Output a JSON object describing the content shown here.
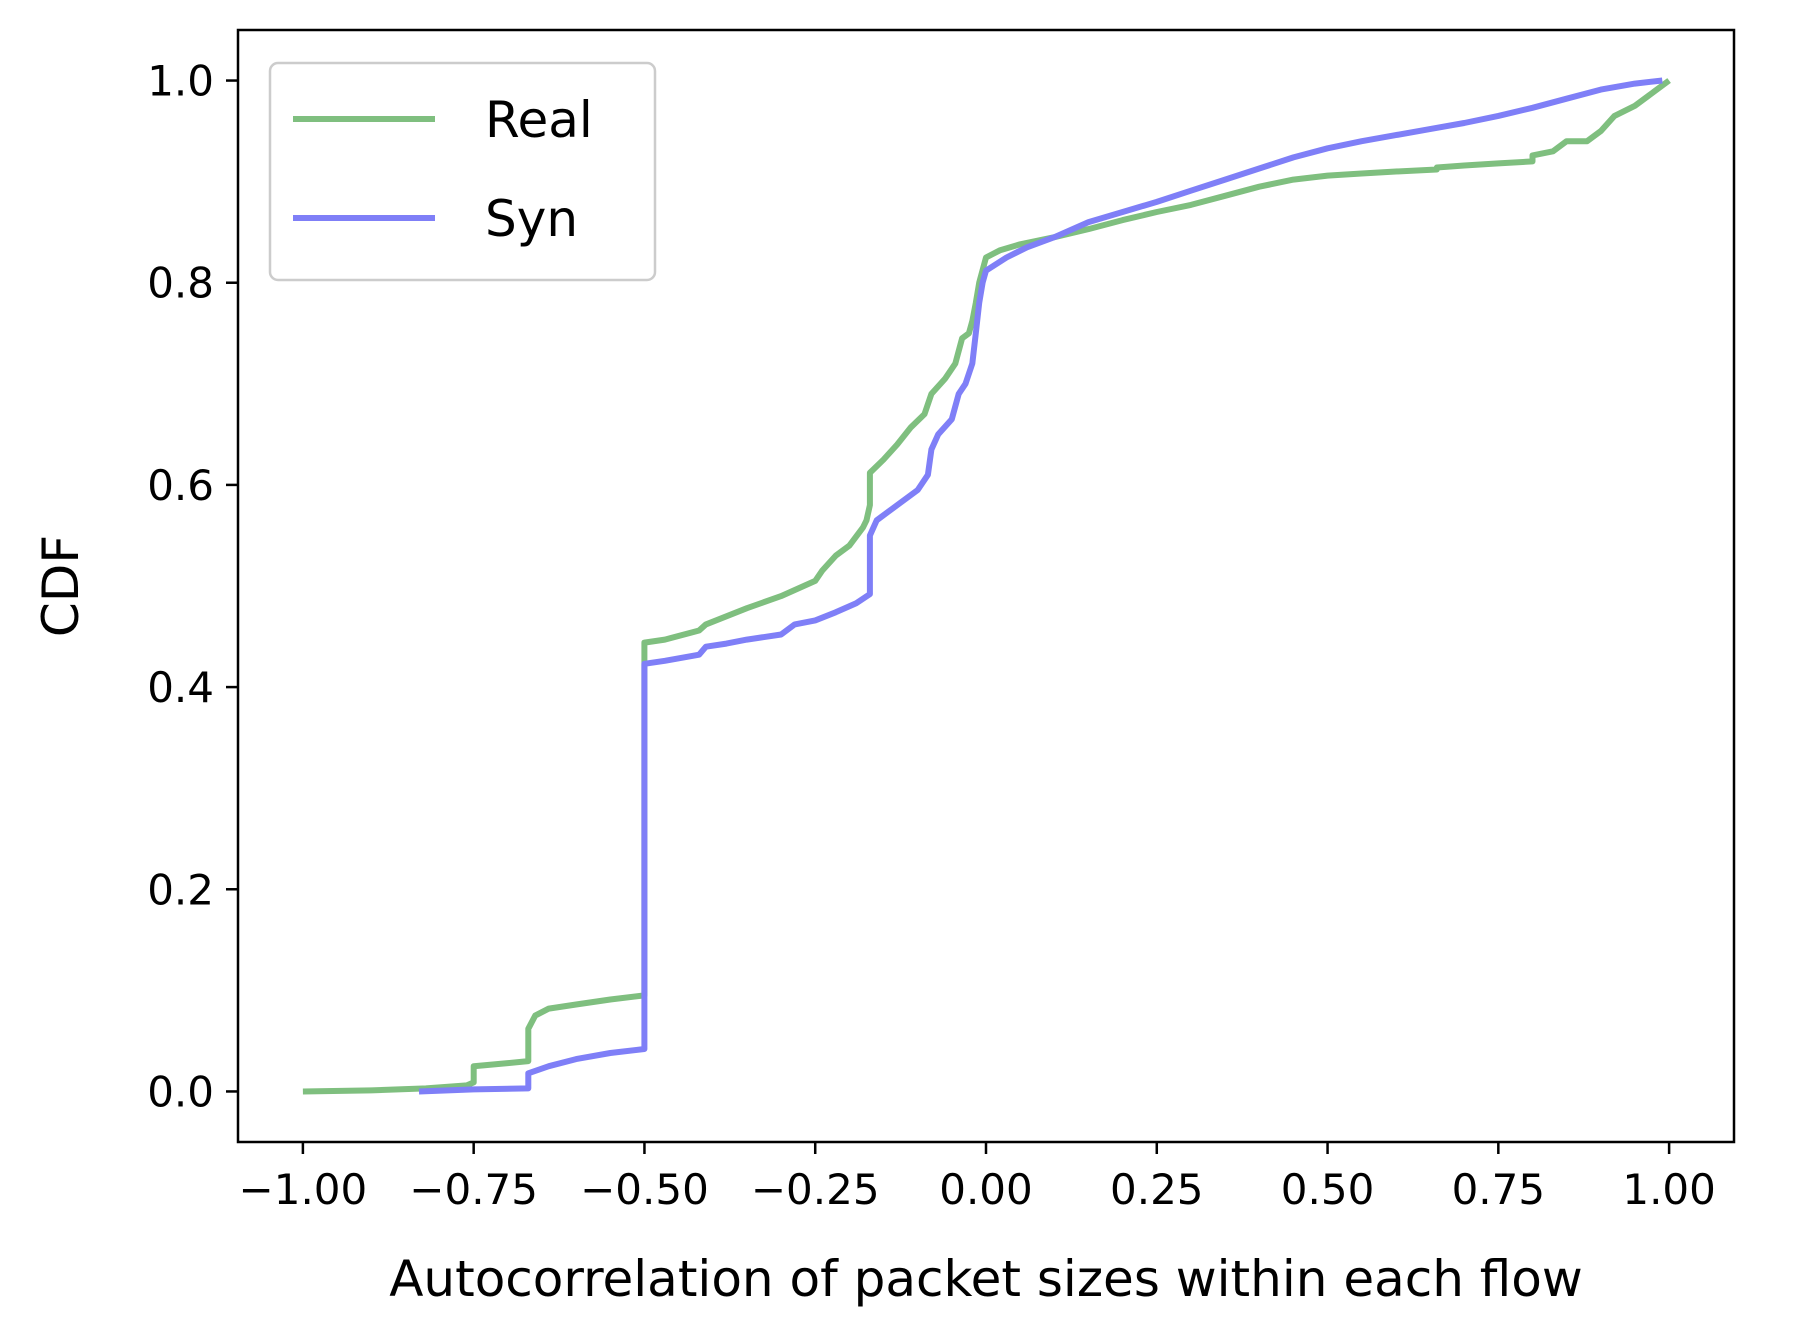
{
  "chart_data": {
    "type": "line",
    "xlabel": "Autocorrelation of packet sizes within each flow",
    "ylabel": "CDF",
    "xlim": [
      -1.095,
      1.095
    ],
    "ylim": [
      -0.05,
      1.05
    ],
    "x_ticks": [
      -1.0,
      -0.75,
      -0.5,
      -0.25,
      0.0,
      0.25,
      0.5,
      0.75,
      1.0
    ],
    "x_tick_labels": [
      "−1.00",
      "−0.75",
      "−0.50",
      "−0.25",
      "0.00",
      "0.25",
      "0.50",
      "0.75",
      "1.00"
    ],
    "y_ticks": [
      0.0,
      0.2,
      0.4,
      0.6,
      0.8,
      1.0
    ],
    "y_tick_labels": [
      "0.0",
      "0.2",
      "0.4",
      "0.6",
      "0.8",
      "1.0"
    ],
    "grid": false,
    "legend_position": "top-left",
    "series": [
      {
        "name": "Real",
        "color": "#7fbf7f",
        "points": [
          [
            -1.0,
            0.0
          ],
          [
            -0.9,
            0.001
          ],
          [
            -0.82,
            0.003
          ],
          [
            -0.76,
            0.006
          ],
          [
            -0.75,
            0.009
          ],
          [
            -0.75,
            0.025
          ],
          [
            -0.7,
            0.028
          ],
          [
            -0.67,
            0.03
          ],
          [
            -0.67,
            0.062
          ],
          [
            -0.66,
            0.075
          ],
          [
            -0.64,
            0.082
          ],
          [
            -0.6,
            0.086
          ],
          [
            -0.55,
            0.091
          ],
          [
            -0.5,
            0.095
          ],
          [
            -0.5,
            0.444
          ],
          [
            -0.47,
            0.447
          ],
          [
            -0.42,
            0.456
          ],
          [
            -0.41,
            0.462
          ],
          [
            -0.38,
            0.47
          ],
          [
            -0.35,
            0.478
          ],
          [
            -0.3,
            0.49
          ],
          [
            -0.25,
            0.505
          ],
          [
            -0.24,
            0.515
          ],
          [
            -0.22,
            0.53
          ],
          [
            -0.2,
            0.54
          ],
          [
            -0.18,
            0.558
          ],
          [
            -0.175,
            0.565
          ],
          [
            -0.17,
            0.58
          ],
          [
            -0.17,
            0.612
          ],
          [
            -0.15,
            0.625
          ],
          [
            -0.13,
            0.64
          ],
          [
            -0.11,
            0.657
          ],
          [
            -0.09,
            0.67
          ],
          [
            -0.08,
            0.69
          ],
          [
            -0.06,
            0.705
          ],
          [
            -0.045,
            0.72
          ],
          [
            -0.035,
            0.745
          ],
          [
            -0.025,
            0.75
          ],
          [
            -0.02,
            0.762
          ],
          [
            -0.015,
            0.78
          ],
          [
            -0.01,
            0.8
          ],
          [
            0.0,
            0.825
          ],
          [
            0.02,
            0.832
          ],
          [
            0.05,
            0.838
          ],
          [
            0.1,
            0.845
          ],
          [
            0.15,
            0.853
          ],
          [
            0.2,
            0.862
          ],
          [
            0.25,
            0.87
          ],
          [
            0.3,
            0.877
          ],
          [
            0.35,
            0.886
          ],
          [
            0.4,
            0.895
          ],
          [
            0.45,
            0.902
          ],
          [
            0.5,
            0.906
          ],
          [
            0.55,
            0.908
          ],
          [
            0.6,
            0.91
          ],
          [
            0.66,
            0.912
          ],
          [
            0.66,
            0.914
          ],
          [
            0.7,
            0.916
          ],
          [
            0.75,
            0.918
          ],
          [
            0.8,
            0.92
          ],
          [
            0.8,
            0.926
          ],
          [
            0.83,
            0.93
          ],
          [
            0.85,
            0.94
          ],
          [
            0.88,
            0.94
          ],
          [
            0.9,
            0.95
          ],
          [
            0.92,
            0.965
          ],
          [
            0.95,
            0.975
          ],
          [
            0.97,
            0.985
          ],
          [
            1.0,
            1.0
          ]
        ]
      },
      {
        "name": "Syn",
        "color": "#7f7ff7",
        "points": [
          [
            -0.83,
            0.0
          ],
          [
            -0.75,
            0.002
          ],
          [
            -0.67,
            0.003
          ],
          [
            -0.67,
            0.018
          ],
          [
            -0.64,
            0.025
          ],
          [
            -0.6,
            0.032
          ],
          [
            -0.55,
            0.038
          ],
          [
            -0.5,
            0.042
          ],
          [
            -0.5,
            0.423
          ],
          [
            -0.47,
            0.426
          ],
          [
            -0.42,
            0.432
          ],
          [
            -0.41,
            0.44
          ],
          [
            -0.38,
            0.443
          ],
          [
            -0.35,
            0.447
          ],
          [
            -0.3,
            0.452
          ],
          [
            -0.28,
            0.462
          ],
          [
            -0.25,
            0.466
          ],
          [
            -0.22,
            0.474
          ],
          [
            -0.19,
            0.483
          ],
          [
            -0.17,
            0.492
          ],
          [
            -0.17,
            0.55
          ],
          [
            -0.16,
            0.565
          ],
          [
            -0.13,
            0.58
          ],
          [
            -0.1,
            0.595
          ],
          [
            -0.085,
            0.61
          ],
          [
            -0.08,
            0.635
          ],
          [
            -0.07,
            0.65
          ],
          [
            -0.05,
            0.665
          ],
          [
            -0.04,
            0.69
          ],
          [
            -0.03,
            0.7
          ],
          [
            -0.02,
            0.72
          ],
          [
            -0.015,
            0.75
          ],
          [
            -0.01,
            0.78
          ],
          [
            -0.005,
            0.8
          ],
          [
            0.0,
            0.812
          ],
          [
            0.03,
            0.825
          ],
          [
            0.06,
            0.835
          ],
          [
            0.1,
            0.845
          ],
          [
            0.15,
            0.86
          ],
          [
            0.2,
            0.87
          ],
          [
            0.25,
            0.88
          ],
          [
            0.3,
            0.891
          ],
          [
            0.35,
            0.902
          ],
          [
            0.4,
            0.913
          ],
          [
            0.45,
            0.924
          ],
          [
            0.5,
            0.933
          ],
          [
            0.55,
            0.94
          ],
          [
            0.6,
            0.946
          ],
          [
            0.65,
            0.952
          ],
          [
            0.7,
            0.958
          ],
          [
            0.75,
            0.965
          ],
          [
            0.8,
            0.973
          ],
          [
            0.85,
            0.982
          ],
          [
            0.9,
            0.991
          ],
          [
            0.95,
            0.997
          ],
          [
            0.99,
            1.0
          ]
        ]
      }
    ]
  }
}
